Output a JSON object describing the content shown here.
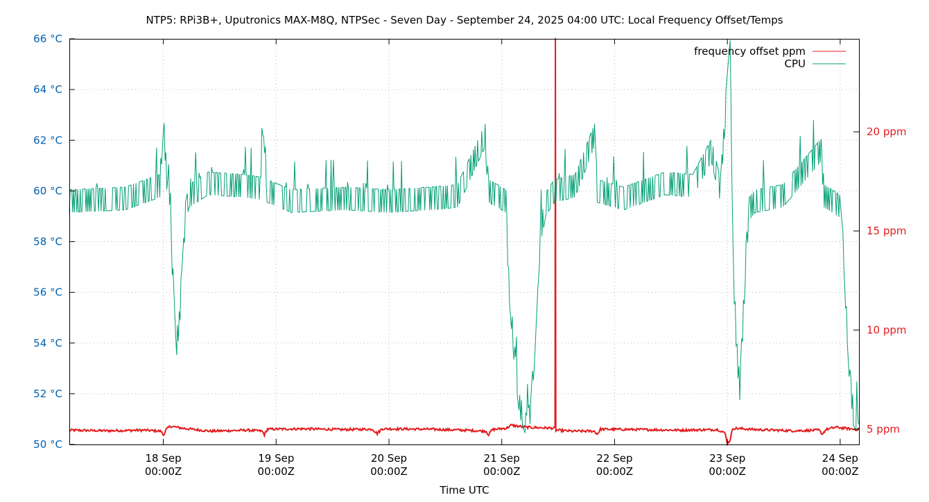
{
  "chart_data": {
    "type": "line",
    "title": "NTP5: RPi3B+, Uputronics MAX-M8Q, NTPSec - Seven Day - September 24, 2025 04:00 UTC: Local Frequency Offset/Temps",
    "xlabel": "Time UTC",
    "xlim": [
      "2025-09-17T04:00",
      "2025-09-24T04:00"
    ],
    "x_ticks": [
      {
        "t": "2025-09-18T00:00",
        "label": [
          "18 Sep",
          "00:00Z"
        ]
      },
      {
        "t": "2025-09-19T00:00",
        "label": [
          "19 Sep",
          "00:00Z"
        ]
      },
      {
        "t": "2025-09-20T00:00",
        "label": [
          "20 Sep",
          "00:00Z"
        ]
      },
      {
        "t": "2025-09-21T00:00",
        "label": [
          "21 Sep",
          "00:00Z"
        ]
      },
      {
        "t": "2025-09-22T00:00",
        "label": [
          "22 Sep",
          "00:00Z"
        ]
      },
      {
        "t": "2025-09-23T00:00",
        "label": [
          "23 Sep",
          "00:00Z"
        ]
      },
      {
        "t": "2025-09-24T00:00",
        "label": [
          "24 Sep",
          "00:00Z"
        ]
      }
    ],
    "y_left": {
      "lim": [
        50,
        66
      ],
      "ticks": [
        50,
        52,
        54,
        56,
        58,
        60,
        62,
        64,
        66
      ],
      "unit": "°C",
      "color": "#0060ad"
    },
    "y_right": {
      "lim": [
        4.23,
        24.69
      ],
      "ticks": [
        5,
        10,
        15,
        20
      ],
      "unit": "ppm",
      "color": "#e41a1c"
    },
    "grid": true,
    "legend_placement": "top-right",
    "series": [
      {
        "name": "frequency offset ppm",
        "axis": "right",
        "color": "#e41a1c",
        "points": [
          [
            "2025-09-17T04:00",
            4.95
          ],
          [
            "2025-09-17T12:00",
            4.92
          ],
          [
            "2025-09-17T20:00",
            4.95
          ],
          [
            "2025-09-17T23:30",
            4.9
          ],
          [
            "2025-09-18T00:00",
            4.7
          ],
          [
            "2025-09-18T00:40",
            5.0
          ],
          [
            "2025-09-18T01:30",
            5.15
          ],
          [
            "2025-09-18T04:00",
            5.05
          ],
          [
            "2025-09-18T10:00",
            4.9
          ],
          [
            "2025-09-18T18:00",
            4.95
          ],
          [
            "2025-09-18T21:00",
            4.9
          ],
          [
            "2025-09-18T21:30",
            4.72
          ],
          [
            "2025-09-18T22:10",
            5.0
          ],
          [
            "2025-09-19T06:00",
            5.02
          ],
          [
            "2025-09-19T14:00",
            4.98
          ],
          [
            "2025-09-19T20:30",
            5.0
          ],
          [
            "2025-09-19T21:30",
            4.78
          ],
          [
            "2025-09-19T22:30",
            5.02
          ],
          [
            "2025-09-20T08:00",
            5.0
          ],
          [
            "2025-09-20T16:00",
            4.95
          ],
          [
            "2025-09-20T20:40",
            4.9
          ],
          [
            "2025-09-20T21:10",
            4.72
          ],
          [
            "2025-09-20T22:00",
            4.98
          ],
          [
            "2025-09-21T01:00",
            5.05
          ],
          [
            "2025-09-21T02:00",
            5.2
          ],
          [
            "2025-09-21T05:00",
            5.1
          ],
          [
            "2025-09-21T11:20",
            5.05
          ],
          [
            "2025-09-21T11:25",
            24.69
          ],
          [
            "2025-09-21T11:30",
            4.95
          ],
          [
            "2025-09-21T15:00",
            4.9
          ],
          [
            "2025-09-21T19:40",
            4.9
          ],
          [
            "2025-09-21T20:20",
            4.75
          ],
          [
            "2025-09-21T21:00",
            5.0
          ],
          [
            "2025-09-22T06:00",
            4.98
          ],
          [
            "2025-09-22T14:00",
            4.95
          ],
          [
            "2025-09-22T22:00",
            4.98
          ],
          [
            "2025-09-22T23:30",
            4.8
          ],
          [
            "2025-09-23T00:00",
            4.3
          ],
          [
            "2025-09-23T00:30",
            4.4
          ],
          [
            "2025-09-23T01:10",
            5.05
          ],
          [
            "2025-09-23T06:00",
            4.98
          ],
          [
            "2025-09-23T14:00",
            4.92
          ],
          [
            "2025-09-23T19:30",
            4.95
          ],
          [
            "2025-09-23T20:10",
            4.75
          ],
          [
            "2025-09-23T21:00",
            4.98
          ],
          [
            "2025-09-23T23:00",
            5.1
          ],
          [
            "2025-09-24T02:00",
            5.02
          ],
          [
            "2025-09-24T04:00",
            4.97
          ]
        ]
      },
      {
        "name": "CPU",
        "axis": "left",
        "color": "#009e73",
        "points": [
          [
            "2025-09-17T04:00",
            59.6
          ],
          [
            "2025-09-17T15:54",
            59.7
          ],
          [
            "2025-09-17T23:15",
            60.2
          ],
          [
            "2025-09-18T00:00",
            62.8
          ],
          [
            "2025-09-18T00:44",
            60.5
          ],
          [
            "2025-09-18T01:20",
            59.0
          ],
          [
            "2025-09-18T02:04",
            56.5
          ],
          [
            "2025-09-18T02:39",
            53.7
          ],
          [
            "2025-09-18T03:23",
            54.8
          ],
          [
            "2025-09-18T04:07",
            57.0
          ],
          [
            "2025-09-18T04:43",
            59.1
          ],
          [
            "2025-09-18T05:27",
            59.8
          ],
          [
            "2025-09-18T09:34",
            60.3
          ],
          [
            "2025-09-18T16:56",
            60.2
          ],
          [
            "2025-09-18T20:46",
            60.1
          ],
          [
            "2025-09-18T21:21",
            62.6
          ],
          [
            "2025-09-18T22:05",
            60.0
          ],
          [
            "2025-09-19T03:14",
            59.6
          ],
          [
            "2025-09-19T15:01",
            59.7
          ],
          [
            "2025-09-19T23:51",
            59.6
          ],
          [
            "2025-09-20T08:41",
            59.7
          ],
          [
            "2025-09-20T14:35",
            59.8
          ],
          [
            "2025-09-20T20:28",
            62.2
          ],
          [
            "2025-09-20T21:12",
            60.0
          ],
          [
            "2025-09-21T00:53",
            59.6
          ],
          [
            "2025-09-21T01:28",
            56.5
          ],
          [
            "2025-09-21T02:04",
            55.0
          ],
          [
            "2025-09-21T02:57",
            53.0
          ],
          [
            "2025-09-21T03:50",
            51.5
          ],
          [
            "2025-09-21T05:18",
            50.7
          ],
          [
            "2025-09-21T06:11",
            51.4
          ],
          [
            "2025-09-21T06:55",
            53.5
          ],
          [
            "2025-09-21T07:39",
            56.5
          ],
          [
            "2025-09-21T08:23",
            58.5
          ],
          [
            "2025-09-21T09:25",
            59.5
          ],
          [
            "2025-09-21T11:11",
            60.0
          ],
          [
            "2025-09-21T15:36",
            60.2
          ],
          [
            "2025-09-21T19:44",
            62.2
          ],
          [
            "2025-09-21T20:19",
            60.0
          ],
          [
            "2025-09-22T01:55",
            59.7
          ],
          [
            "2025-09-22T10:45",
            60.3
          ],
          [
            "2025-09-22T16:38",
            60.2
          ],
          [
            "2025-09-22T20:37",
            61.6
          ],
          [
            "2025-09-22T22:31",
            60.0
          ],
          [
            "2025-09-22T23:42",
            63.5
          ],
          [
            "2025-09-23T00:35",
            65.5
          ],
          [
            "2025-09-23T01:02",
            60.0
          ],
          [
            "2025-09-23T01:28",
            56.0
          ],
          [
            "2025-09-23T02:04",
            53.5
          ],
          [
            "2025-09-23T02:39",
            52.2
          ],
          [
            "2025-09-23T03:14",
            54.5
          ],
          [
            "2025-09-23T03:58",
            57.5
          ],
          [
            "2025-09-23T04:42",
            59.3
          ],
          [
            "2025-09-23T05:53",
            59.6
          ],
          [
            "2025-09-23T11:46",
            59.8
          ],
          [
            "2025-09-23T19:55",
            61.6
          ],
          [
            "2025-09-23T20:37",
            59.8
          ],
          [
            "2025-09-23T23:53",
            59.4
          ],
          [
            "2025-09-24T00:46",
            57.5
          ],
          [
            "2025-09-24T01:21",
            55.0
          ],
          [
            "2025-09-24T02:06",
            52.5
          ],
          [
            "2025-09-24T02:50",
            51.2
          ],
          [
            "2025-09-24T03:52",
            50.8
          ]
        ]
      }
    ]
  }
}
